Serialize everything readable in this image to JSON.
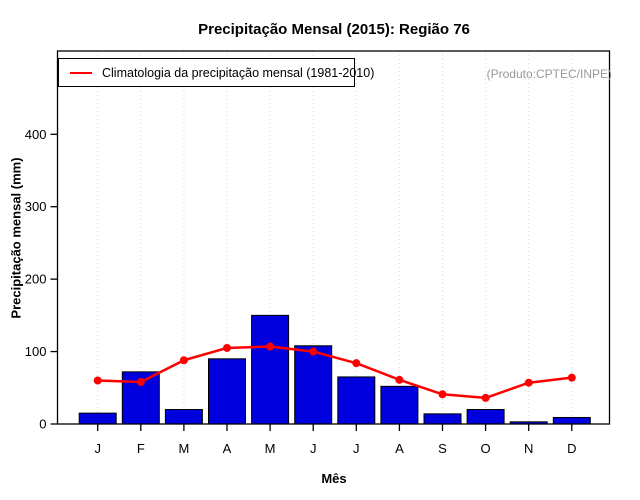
{
  "chart_data": {
    "type": "bar",
    "title": "Precipitação Mensal (2015): Região 76",
    "xlabel": "Mês",
    "ylabel": "Precipitação mensal (mm)",
    "annotation": "(Produto:CPTEC/INPE)",
    "categories": [
      "J",
      "F",
      "M",
      "A",
      "M",
      "J",
      "J",
      "A",
      "S",
      "O",
      "N",
      "D"
    ],
    "series": [
      {
        "name": "Precipitação mensal (2015)",
        "type": "bar",
        "values": [
          15,
          72,
          20,
          90,
          150,
          108,
          65,
          52,
          14,
          20,
          3,
          9
        ]
      },
      {
        "name": "Climatologia da precipitação mensal (1981-2010)",
        "type": "line",
        "values": [
          60,
          58,
          88,
          105,
          107,
          100,
          84,
          61,
          41,
          36,
          57,
          64
        ]
      }
    ],
    "yticks": [
      0,
      100,
      200,
      300,
      400
    ],
    "ylim": [
      0,
      515
    ],
    "grid": "vertical-dotted",
    "legend": {
      "position": "topleft",
      "entries": [
        "Climatologia da precipitação mensal (1981-2010)"
      ]
    },
    "colors": {
      "bar": "#0000DE",
      "bar_border": "#000000",
      "line": "#FF0000",
      "grid": "#D8D8D8",
      "box": "#000000",
      "annotation": "#999999"
    }
  }
}
